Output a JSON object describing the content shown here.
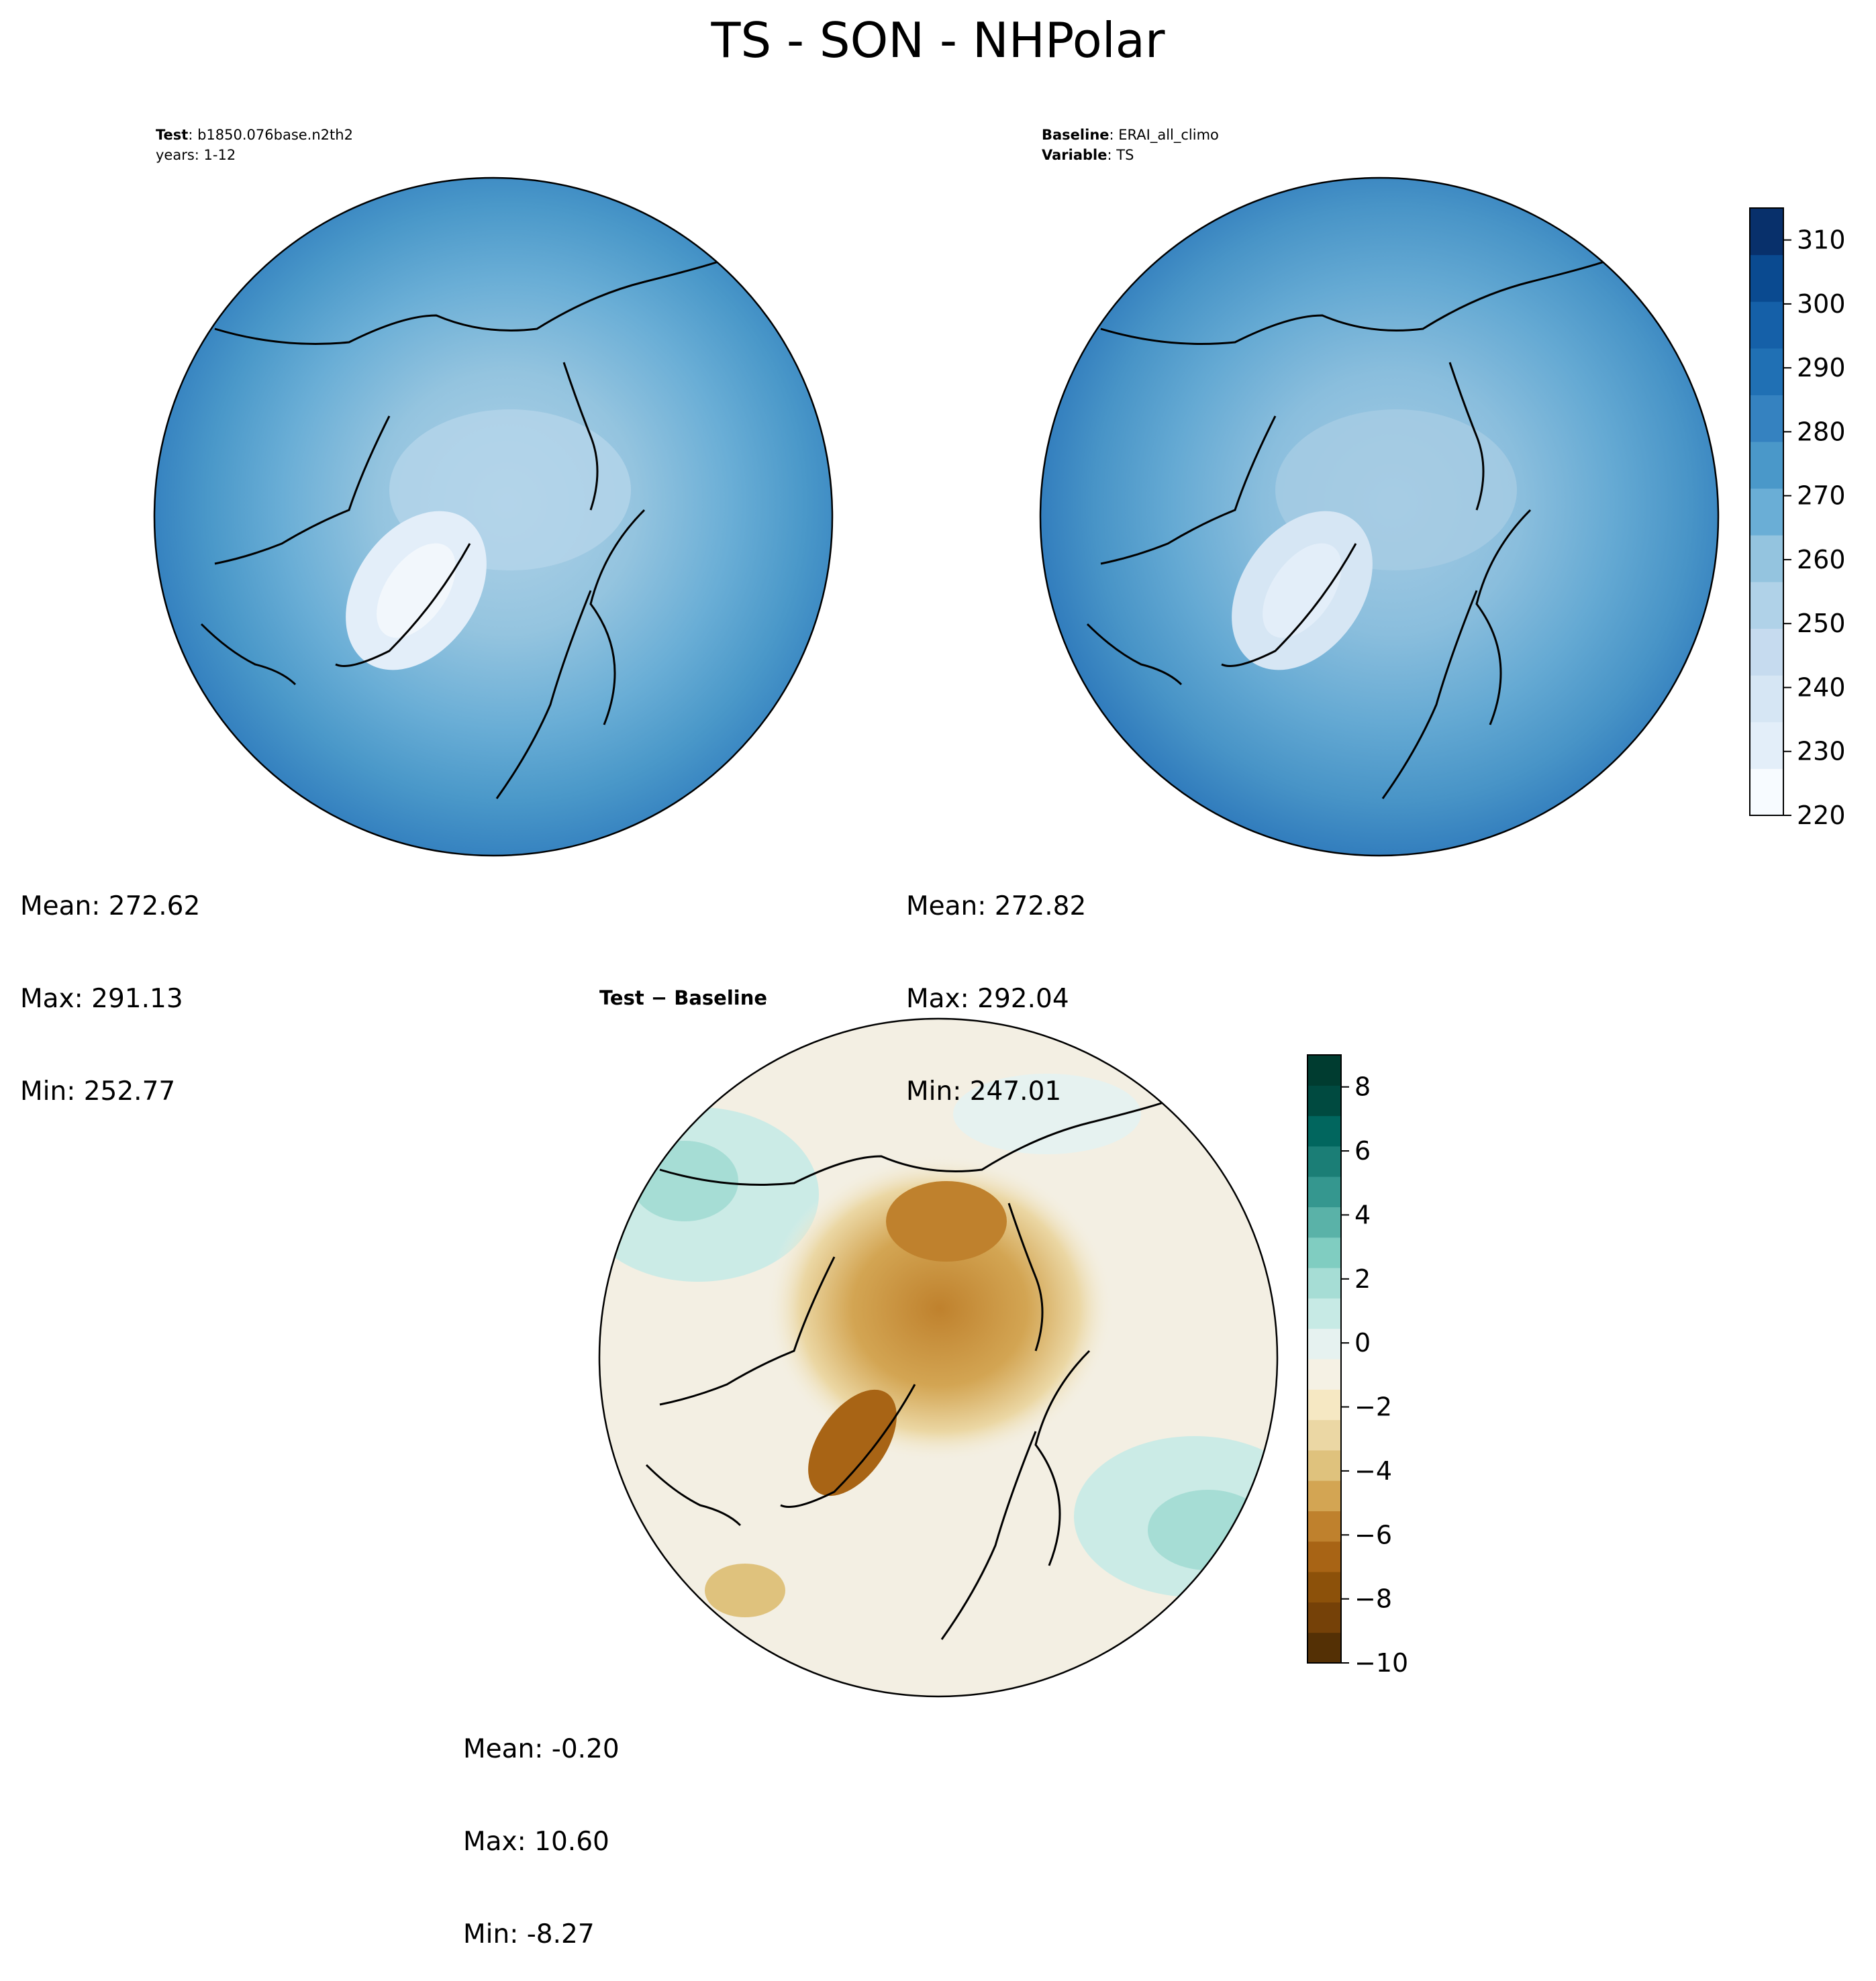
{
  "title": "TS - SON - NHPolar",
  "panels": {
    "test": {
      "label_key": "Test",
      "label_value": "b1850.076base.n2th2",
      "line2": "years: 1-12",
      "stats": [
        "Mean: 272.62",
        "Max: 291.13",
        "Min: 252.77"
      ]
    },
    "baseline": {
      "label_key": "Baseline",
      "label_value": "ERAI_all_climo",
      "var_key": "Variable",
      "var_value": "TS",
      "stats": [
        "Mean: 272.82",
        "Max: 292.04",
        "Min: 247.01"
      ]
    },
    "diff": {
      "title": "Test − Baseline",
      "stats": [
        "Mean: -0.20",
        "Max: 10.60",
        "Min: -8.27"
      ]
    }
  },
  "colorbars": {
    "main": {
      "range": [
        220,
        315
      ],
      "ticks": [
        "220",
        "230",
        "240",
        "250",
        "260",
        "270",
        "280",
        "290",
        "300",
        "310"
      ],
      "tick_values": [
        220,
        230,
        240,
        250,
        260,
        270,
        280,
        290,
        300,
        310
      ],
      "colors": [
        "#f7fbff",
        "#e3eef9",
        "#d6e6f4",
        "#c6dbef",
        "#b0d2e8",
        "#94c4df",
        "#6aaed6",
        "#4a98c9",
        "#3582c0",
        "#2070b4",
        "#1560a8",
        "#0a4a90",
        "#08306b"
      ]
    },
    "diff": {
      "range": [
        -10,
        9
      ],
      "ticks": [
        "−10",
        "−8",
        "−6",
        "−4",
        "−2",
        "0",
        "2",
        "4",
        "6",
        "8"
      ],
      "tick_values": [
        -10,
        -8,
        -6,
        -4,
        -2,
        0,
        2,
        4,
        6,
        8
      ],
      "colors": [
        "#543005",
        "#754108",
        "#8c510a",
        "#a86415",
        "#bf812d",
        "#d3a553",
        "#dfc27d",
        "#ebd7a4",
        "#f6e8c3",
        "#f5f1e4",
        "#e6f2f0",
        "#c7eae5",
        "#a6ddd5",
        "#80cdc1",
        "#5ab2a8",
        "#35978f",
        "#1b7e76",
        "#01665e",
        "#004a40",
        "#003c30"
      ]
    }
  },
  "chart_data": [
    {
      "type": "heatmap",
      "title": "Test: b1850.076base.n2th2",
      "subtitle": "years: 1-12",
      "projection": "north polar stereographic",
      "mean": 272.62,
      "max": 291.13,
      "min": 252.77,
      "levels": [
        220,
        315
      ]
    },
    {
      "type": "heatmap",
      "title": "Baseline: ERAI_all_climo",
      "subtitle": "Variable: TS",
      "projection": "north polar stereographic",
      "mean": 272.82,
      "max": 292.04,
      "min": 247.01,
      "levels": [
        220,
        315
      ]
    },
    {
      "type": "heatmap",
      "title": "Test − Baseline",
      "projection": "north polar stereographic",
      "mean": -0.2,
      "max": 10.6,
      "min": -8.27,
      "levels": [
        -10,
        9
      ]
    }
  ]
}
